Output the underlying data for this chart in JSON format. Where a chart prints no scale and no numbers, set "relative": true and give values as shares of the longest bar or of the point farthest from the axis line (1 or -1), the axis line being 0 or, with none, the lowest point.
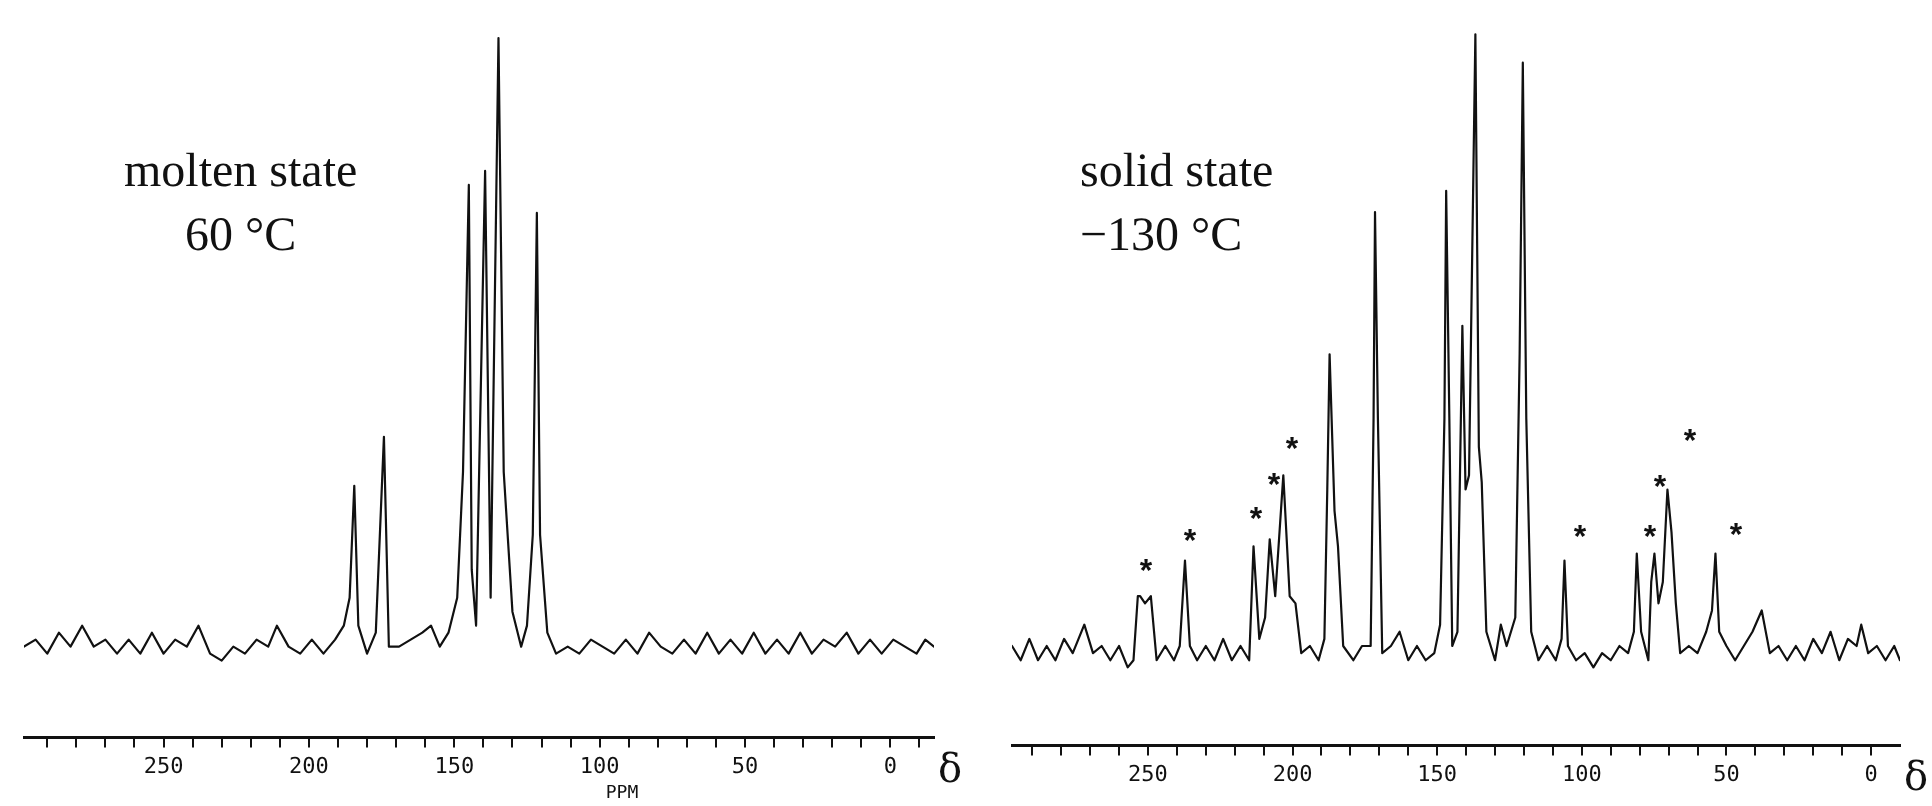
{
  "chart_data": [
    {
      "type": "line",
      "relative": true,
      "title": "molten state\n60 °C",
      "xlabel": "δ",
      "annotations": [
        "PPM"
      ],
      "xlim": [
        298,
        -15
      ],
      "xticks": [
        {
          "value": 290,
          "label": null
        },
        {
          "value": 280,
          "label": null
        },
        {
          "value": 270,
          "label": null
        },
        {
          "value": 260,
          "label": null
        },
        250,
        {
          "value": 240,
          "label": null
        },
        {
          "value": 230,
          "label": null
        },
        {
          "value": 220,
          "label": null
        },
        {
          "value": 210,
          "label": null
        },
        200,
        {
          "value": 190,
          "label": null
        },
        {
          "value": 180,
          "label": null
        },
        {
          "value": 170,
          "label": null
        },
        {
          "value": 160,
          "label": null
        },
        150,
        {
          "value": 140,
          "label": null
        },
        {
          "value": 130,
          "label": null
        },
        {
          "value": 120,
          "label": null
        },
        {
          "value": 110,
          "label": null
        },
        100,
        {
          "value": 90,
          "label": null
        },
        {
          "value": 80,
          "label": null
        },
        {
          "value": 70,
          "label": null
        },
        {
          "value": 60,
          "label": null
        },
        50,
        {
          "value": 40,
          "label": null
        },
        {
          "value": 30,
          "label": null
        },
        {
          "value": 20,
          "label": null
        },
        {
          "value": 10,
          "label": null
        },
        0,
        {
          "value": -10,
          "label": null
        }
      ],
      "series": [
        {
          "color": "#111111",
          "x": [
            298,
            294,
            290,
            286,
            282,
            278,
            274,
            270,
            266,
            262,
            258,
            254,
            250,
            246,
            242,
            238,
            234,
            230,
            226,
            222,
            218,
            214,
            211,
            207,
            203,
            199,
            195,
            191,
            188,
            186,
            184.4,
            183,
            180,
            177,
            174.2,
            172.5,
            169,
            165,
            161,
            158,
            155,
            152,
            149,
            147,
            145,
            144,
            142.5,
            139.4,
            137.5,
            134.8,
            133,
            130,
            127,
            125,
            123,
            121.6,
            120.5,
            118,
            115,
            111,
            107,
            103,
            99,
            95,
            91,
            87,
            83,
            79,
            75,
            71,
            67,
            63,
            59,
            55,
            51,
            47,
            43,
            39,
            35,
            31,
            27,
            23,
            19,
            15,
            11,
            7,
            3,
            -1,
            -5,
            -9,
            -12,
            -15
          ],
          "values": [
            0.13,
            0.14,
            0.12,
            0.15,
            0.13,
            0.16,
            0.13,
            0.14,
            0.12,
            0.14,
            0.12,
            0.15,
            0.12,
            0.14,
            0.13,
            0.16,
            0.12,
            0.11,
            0.13,
            0.12,
            0.14,
            0.13,
            0.16,
            0.13,
            0.12,
            0.14,
            0.12,
            0.14,
            0.16,
            0.2,
            0.36,
            0.16,
            0.12,
            0.15,
            0.43,
            0.13,
            0.13,
            0.14,
            0.15,
            0.16,
            0.13,
            0.15,
            0.2,
            0.38,
            0.79,
            0.24,
            0.16,
            0.81,
            0.2,
            1.0,
            0.38,
            0.18,
            0.13,
            0.16,
            0.29,
            0.75,
            0.29,
            0.15,
            0.12,
            0.13,
            0.12,
            0.14,
            0.13,
            0.12,
            0.14,
            0.12,
            0.15,
            0.13,
            0.12,
            0.14,
            0.12,
            0.15,
            0.12,
            0.14,
            0.12,
            0.15,
            0.12,
            0.14,
            0.12,
            0.15,
            0.12,
            0.14,
            0.13,
            0.15,
            0.12,
            0.14,
            0.12,
            0.14,
            0.13,
            0.12,
            0.14,
            0.13
          ]
        }
      ]
    },
    {
      "type": "line",
      "relative": true,
      "title": "solid state\n−130 °C",
      "xlabel": "δ",
      "annotations": [
        "*",
        "*",
        "*",
        "*",
        "*",
        "*",
        "*",
        "*",
        "*",
        "*"
      ],
      "xlim": [
        297,
        -10
      ],
      "xticks": [
        {
          "value": 290,
          "label": null
        },
        {
          "value": 280,
          "label": null
        },
        {
          "value": 270,
          "label": null
        },
        {
          "value": 260,
          "label": null
        },
        250,
        {
          "value": 240,
          "label": null
        },
        {
          "value": 230,
          "label": null
        },
        {
          "value": 220,
          "label": null
        },
        {
          "value": 210,
          "label": null
        },
        200,
        {
          "value": 190,
          "label": null
        },
        {
          "value": 180,
          "label": null
        },
        {
          "value": 170,
          "label": null
        },
        {
          "value": 160,
          "label": null
        },
        150,
        {
          "value": 140,
          "label": null
        },
        {
          "value": 130,
          "label": null
        },
        {
          "value": 120,
          "label": null
        },
        {
          "value": 110,
          "label": null
        },
        100,
        {
          "value": 90,
          "label": null
        },
        {
          "value": 80,
          "label": null
        },
        {
          "value": 70,
          "label": null
        },
        {
          "value": 60,
          "label": null
        },
        50,
        {
          "value": 40,
          "label": null
        },
        {
          "value": 30,
          "label": null
        },
        {
          "value": 20,
          "label": null
        },
        {
          "value": 10,
          "label": null
        },
        0
      ],
      "series": [
        {
          "color": "#111111",
          "x": [
            297,
            294,
            291,
            288,
            285,
            282,
            279,
            276,
            272,
            269,
            266,
            263,
            260,
            257,
            255,
            253.5,
            252.7,
            251,
            249,
            247,
            244,
            241,
            239,
            237.2,
            235.5,
            233,
            230,
            227,
            224,
            221,
            218,
            215,
            213.5,
            211.5,
            209.5,
            207.9,
            206,
            203.2,
            201,
            199,
            197,
            194,
            191,
            189,
            188,
            187.2,
            185.5,
            184.3,
            182.5,
            179,
            176,
            173,
            172,
            171.5,
            170.5,
            169,
            166,
            163,
            160,
            157,
            154,
            151,
            149,
            147.5,
            146.9,
            145.8,
            144.8,
            143,
            141.3,
            140.2,
            139,
            136.8,
            135.6,
            134.6,
            133,
            130,
            128,
            126,
            123,
            121.5,
            120.4,
            119.2,
            117.5,
            115,
            112,
            109,
            107,
            106,
            104.8,
            102,
            99,
            96,
            93,
            90,
            87,
            84,
            82,
            81,
            79.5,
            77,
            76,
            74.9,
            73.5,
            72,
            70.4,
            69,
            67.5,
            66,
            63,
            60,
            57,
            55,
            53.8,
            52.5,
            50,
            47,
            44,
            41,
            37.8,
            35,
            32,
            29,
            26,
            23,
            20,
            17,
            14,
            11,
            8,
            5,
            3.4,
            1,
            -2,
            -5,
            -8,
            -10
          ],
          "values": [
            0.14,
            0.12,
            0.15,
            0.12,
            0.14,
            0.12,
            0.15,
            0.13,
            0.17,
            0.13,
            0.14,
            0.12,
            0.14,
            0.11,
            0.12,
            0.21,
            0.21,
            0.2,
            0.21,
            0.12,
            0.14,
            0.12,
            0.14,
            0.26,
            0.14,
            0.12,
            0.14,
            0.12,
            0.15,
            0.12,
            0.14,
            0.12,
            0.28,
            0.15,
            0.18,
            0.29,
            0.21,
            0.38,
            0.21,
            0.2,
            0.13,
            0.14,
            0.12,
            0.15,
            0.36,
            0.55,
            0.33,
            0.28,
            0.14,
            0.12,
            0.14,
            0.14,
            0.46,
            0.75,
            0.46,
            0.13,
            0.14,
            0.16,
            0.12,
            0.14,
            0.12,
            0.13,
            0.17,
            0.46,
            0.78,
            0.46,
            0.14,
            0.16,
            0.59,
            0.36,
            0.38,
            1.0,
            0.42,
            0.37,
            0.16,
            0.12,
            0.17,
            0.14,
            0.18,
            0.55,
            0.96,
            0.46,
            0.16,
            0.12,
            0.14,
            0.12,
            0.15,
            0.26,
            0.14,
            0.12,
            0.13,
            0.11,
            0.13,
            0.12,
            0.14,
            0.13,
            0.16,
            0.27,
            0.16,
            0.12,
            0.23,
            0.27,
            0.2,
            0.23,
            0.36,
            0.3,
            0.2,
            0.13,
            0.14,
            0.13,
            0.16,
            0.19,
            0.27,
            0.16,
            0.14,
            0.12,
            0.14,
            0.16,
            0.19,
            0.13,
            0.14,
            0.12,
            0.14,
            0.12,
            0.15,
            0.13,
            0.16,
            0.12,
            0.15,
            0.14,
            0.17,
            0.13,
            0.14,
            0.12,
            0.14,
            0.12
          ]
        }
      ]
    }
  ]
}
